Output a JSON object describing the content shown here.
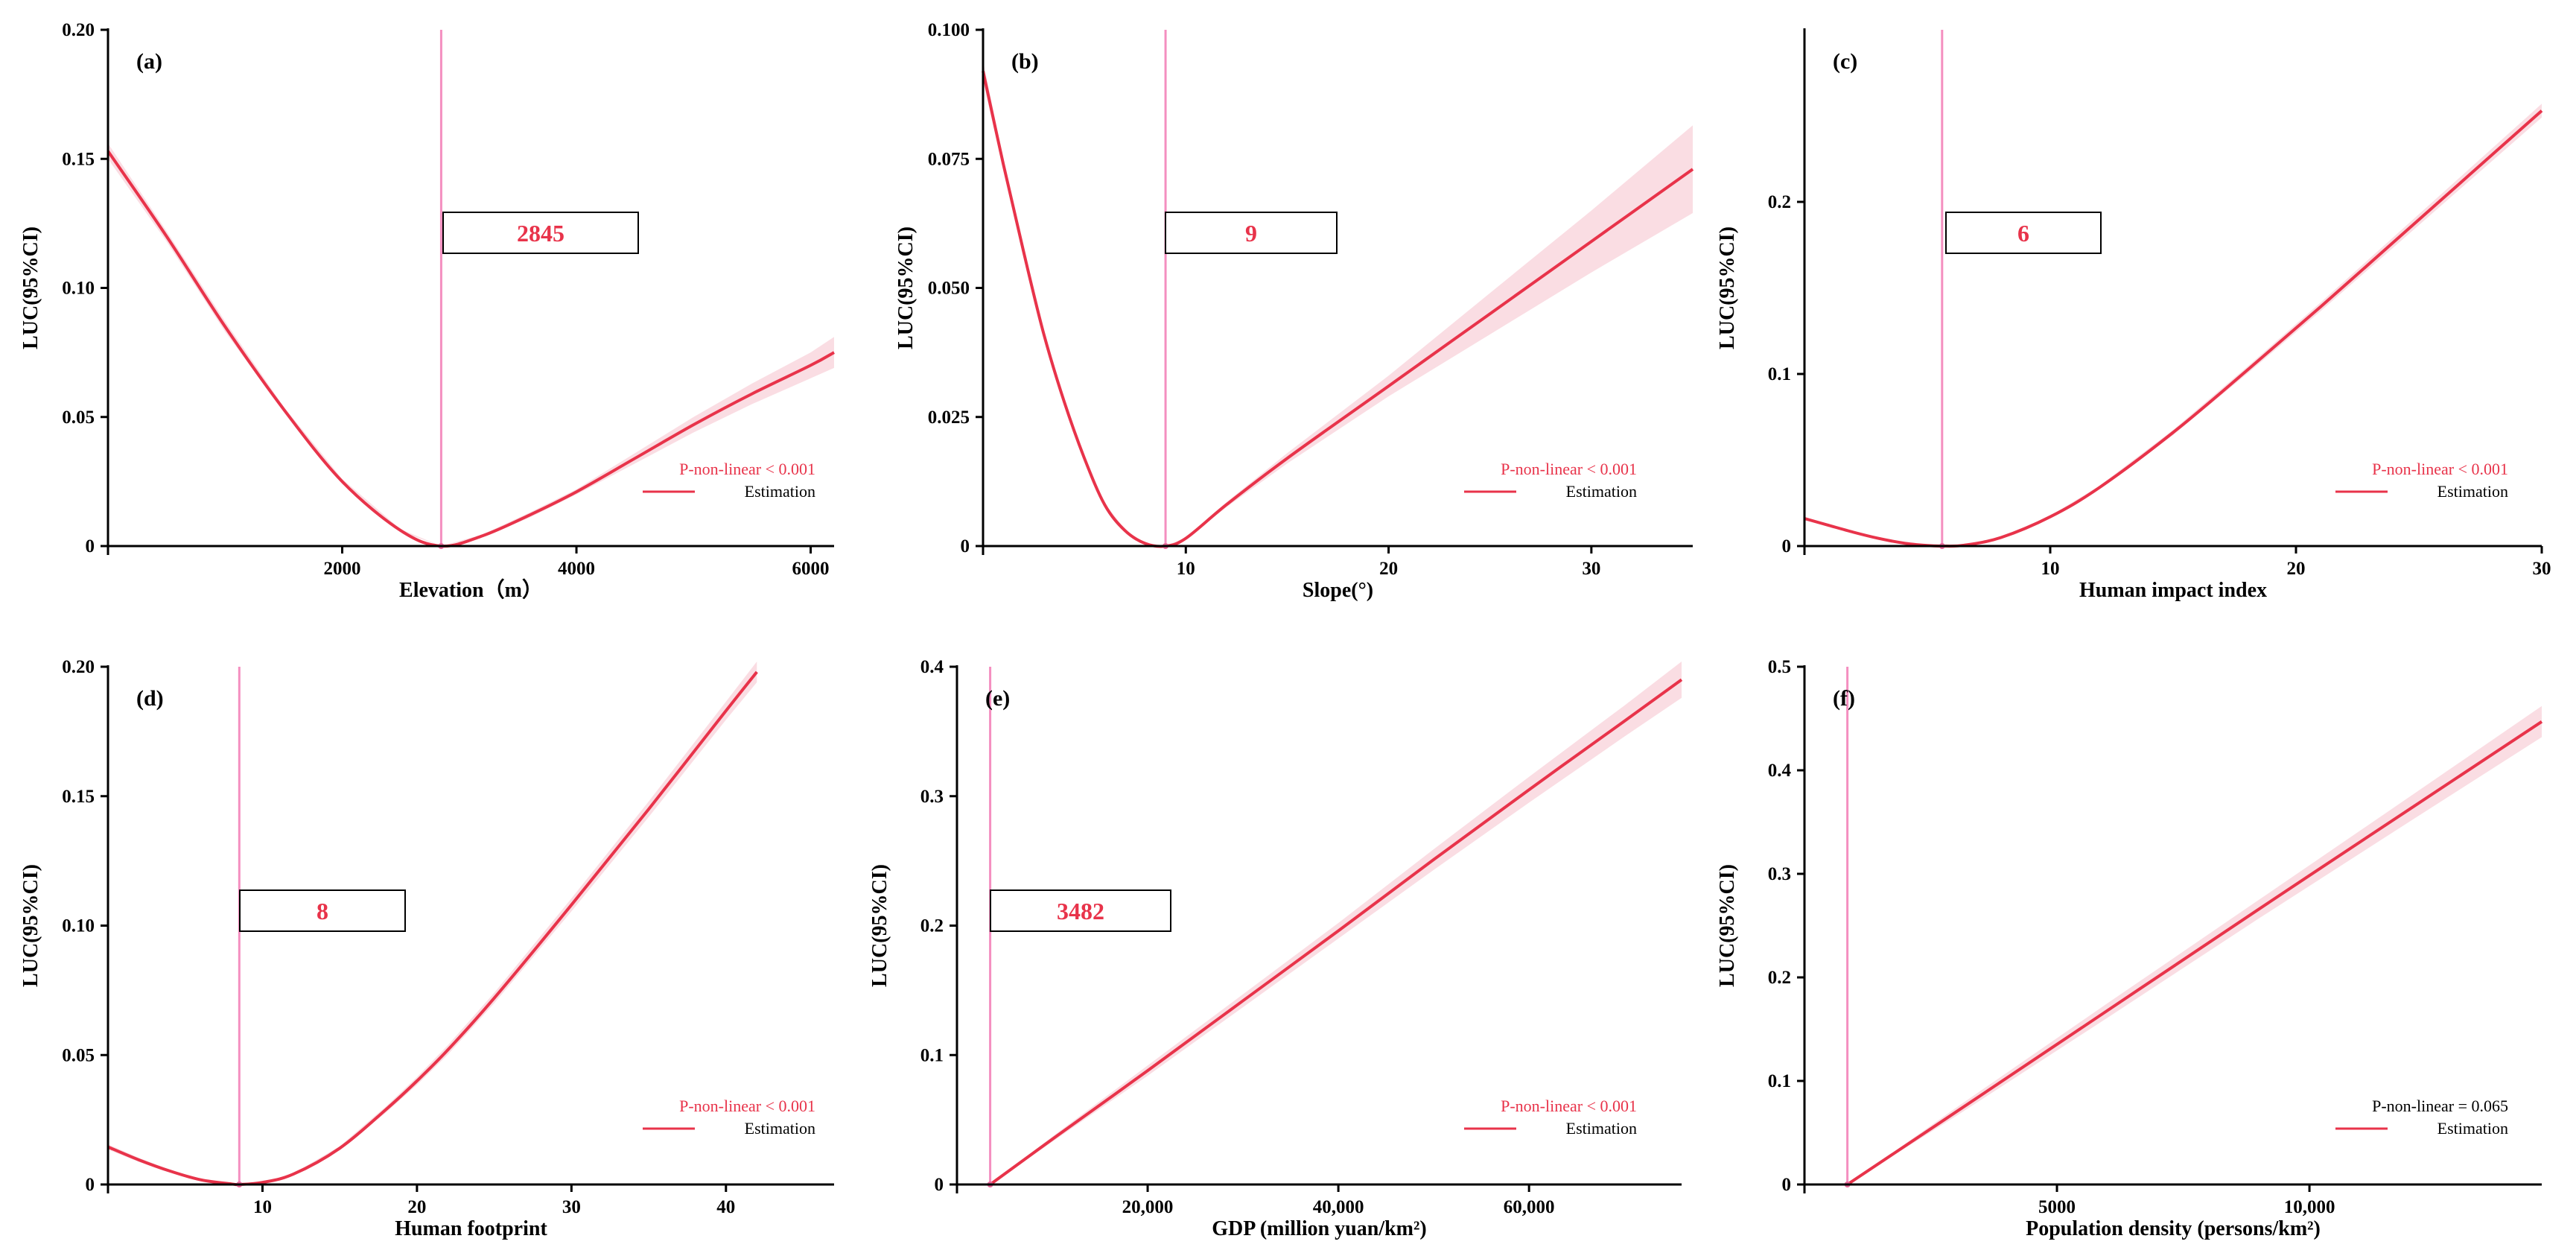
{
  "figure": {
    "curve_color": "#e8334a",
    "band_color": "#f7c6d0",
    "threshold_color": "#f48fc0",
    "pval_color_significant": "#e8334a",
    "pval_color_plain": "#000000"
  },
  "chart_data": [
    {
      "type": "line",
      "panel": "(a)",
      "xlabel": "Elevation（m）",
      "ylabel": "LUC(95%CI)",
      "xlim": [
        0,
        6200
      ],
      "ylim": [
        0,
        0.2
      ],
      "xticks": [
        2000,
        4000,
        6000
      ],
      "xtick_labels": [
        "2000",
        "4000",
        "6000"
      ],
      "yticks": [
        0,
        0.05,
        0.1,
        0.15,
        0.2
      ],
      "ytick_labels": [
        "0",
        "0.05",
        "0.10",
        "0.15",
        "0.20"
      ],
      "threshold": 2845,
      "threshold_label": "2845",
      "p_value_text": "P-non-linear < 0.001",
      "p_significant": true,
      "legend_label": "Estimation",
      "series": {
        "x": [
          0,
          500,
          1000,
          1500,
          2000,
          2500,
          2845,
          3200,
          3600,
          4000,
          4500,
          5000,
          5500,
          6000,
          6200
        ],
        "y": [
          0.153,
          0.12,
          0.085,
          0.053,
          0.025,
          0.006,
          0.0,
          0.004,
          0.012,
          0.021,
          0.034,
          0.047,
          0.059,
          0.07,
          0.075
        ],
        "ci_halfwidth": [
          0.003,
          0.002,
          0.002,
          0.001,
          0.001,
          0.0005,
          0.0,
          0.0005,
          0.001,
          0.001,
          0.002,
          0.003,
          0.004,
          0.005,
          0.006
        ]
      }
    },
    {
      "type": "line",
      "panel": "(b)",
      "xlabel": "Slope(°)",
      "ylabel": "LUC(95%CI)",
      "xlim": [
        0,
        35
      ],
      "ylim": [
        0,
        0.1
      ],
      "xticks": [
        10,
        20,
        30
      ],
      "xtick_labels": [
        "10",
        "20",
        "30"
      ],
      "yticks": [
        0,
        0.025,
        0.05,
        0.075,
        0.1
      ],
      "ytick_labels": [
        "0",
        "0.025",
        "0.050",
        "0.075",
        "0.100"
      ],
      "threshold": 9,
      "threshold_label": "9",
      "p_value_text": "P-non-linear < 0.001",
      "p_significant": true,
      "legend_label": "Estimation",
      "series": {
        "x": [
          0,
          1,
          2,
          3,
          4,
          5,
          6,
          7,
          8,
          9,
          10,
          12,
          15,
          20,
          25,
          30,
          35
        ],
        "y": [
          0.092,
          0.074,
          0.057,
          0.041,
          0.028,
          0.017,
          0.008,
          0.003,
          0.0005,
          0.0,
          0.0015,
          0.008,
          0.017,
          0.031,
          0.045,
          0.059,
          0.073
        ],
        "ci_halfwidth": [
          0.002,
          0.001,
          0.001,
          0.001,
          0.0005,
          0.0005,
          0.0003,
          0.0002,
          0.0,
          0.0,
          0.0002,
          0.0005,
          0.001,
          0.002,
          0.004,
          0.006,
          0.0085
        ]
      }
    },
    {
      "type": "line",
      "panel": "(c)",
      "xlabel": "Human impact index",
      "ylabel": "LUC(95%CI)",
      "xlim": [
        0,
        30
      ],
      "ylim": [
        0,
        0.3
      ],
      "xticks": [
        10,
        20,
        30
      ],
      "xtick_labels": [
        "10",
        "20",
        "30"
      ],
      "yticks": [
        0,
        0.1,
        0.2
      ],
      "ytick_labels": [
        "0",
        "0.1",
        "0.2"
      ],
      "threshold": 5.6,
      "threshold_label": "6",
      "p_value_text": "P-non-linear < 0.001",
      "p_significant": true,
      "legend_label": "Estimation",
      "series": {
        "x": [
          0,
          1,
          2,
          3,
          4,
          5,
          5.6,
          6.5,
          8,
          10,
          12,
          15,
          18,
          21,
          24,
          27,
          30
        ],
        "y": [
          0.016,
          0.012,
          0.008,
          0.0045,
          0.0018,
          0.0003,
          0.0,
          0.0005,
          0.005,
          0.017,
          0.034,
          0.066,
          0.102,
          0.139,
          0.177,
          0.215,
          0.253
        ],
        "ci_halfwidth": [
          0.001,
          0.0008,
          0.0006,
          0.0004,
          0.0002,
          0.0,
          0.0,
          0.0,
          0.0003,
          0.0006,
          0.001,
          0.0015,
          0.002,
          0.0025,
          0.003,
          0.0035,
          0.004
        ]
      }
    },
    {
      "type": "line",
      "panel": "(d)",
      "xlabel": "Human footprint",
      "ylabel": "LUC(95%CI)",
      "xlim": [
        0,
        47
      ],
      "ylim": [
        0,
        0.2
      ],
      "xticks": [
        10,
        20,
        30,
        40
      ],
      "xtick_labels": [
        "10",
        "20",
        "30",
        "40"
      ],
      "yticks": [
        0,
        0.05,
        0.1,
        0.15,
        0.2
      ],
      "ytick_labels": [
        "0",
        "0.05",
        "0.10",
        "0.15",
        "0.20"
      ],
      "threshold": 8.5,
      "threshold_label": "8",
      "p_value_text": "P-non-linear < 0.001",
      "p_significant": true,
      "legend_label": "Estimation",
      "series": {
        "x": [
          0,
          2,
          4,
          6,
          8,
          8.5,
          10,
          12,
          15,
          18,
          20,
          22,
          25,
          30,
          35,
          40,
          42
        ],
        "y": [
          0.0145,
          0.0095,
          0.0052,
          0.0018,
          0.0002,
          0.0,
          0.0008,
          0.004,
          0.014,
          0.029,
          0.04,
          0.052,
          0.072,
          0.108,
          0.145,
          0.183,
          0.198
        ],
        "ci_halfwidth": [
          0.001,
          0.0008,
          0.0005,
          0.0002,
          0.0,
          0.0,
          0.0,
          0.0003,
          0.0008,
          0.0012,
          0.0015,
          0.0018,
          0.002,
          0.0025,
          0.003,
          0.0035,
          0.004
        ]
      }
    },
    {
      "type": "line",
      "panel": "(e)",
      "xlabel": "GDP (million yuan/km²)",
      "ylabel": "LUC(95%CI)",
      "xlim": [
        0,
        76000
      ],
      "ylim": [
        0,
        0.4
      ],
      "xticks": [
        20000,
        40000,
        60000
      ],
      "xtick_labels": [
        "20,000",
        "40,000",
        "60,000"
      ],
      "yticks": [
        0,
        0.1,
        0.2,
        0.3,
        0.4
      ],
      "ytick_labels": [
        "0",
        "0.1",
        "0.2",
        "0.3",
        "0.4"
      ],
      "threshold": 3482,
      "threshold_label": "3482",
      "p_value_text": "P-non-linear < 0.001",
      "p_significant": true,
      "legend_label": "Estimation",
      "series": {
        "x": [
          3482,
          10000,
          20000,
          30000,
          40000,
          50000,
          60000,
          70000,
          76000
        ],
        "y": [
          0.0,
          0.035,
          0.088,
          0.142,
          0.196,
          0.251,
          0.305,
          0.358,
          0.39
        ],
        "ci_halfwidth": [
          0.0,
          0.002,
          0.004,
          0.005,
          0.006,
          0.008,
          0.01,
          0.012,
          0.014
        ]
      }
    },
    {
      "type": "line",
      "panel": "(f)",
      "xlabel": "Population density  (persons/km²)",
      "ylabel": "LUC(95%CI)",
      "xlim": [
        0,
        14600
      ],
      "ylim": [
        0,
        0.5
      ],
      "xticks": [
        5000,
        10000
      ],
      "xtick_labels": [
        "5000",
        "10,000"
      ],
      "yticks": [
        0,
        0.1,
        0.2,
        0.3,
        0.4,
        0.5
      ],
      "ytick_labels": [
        "0",
        "0.1",
        "0.2",
        "0.3",
        "0.4",
        "0.5"
      ],
      "threshold": 850,
      "threshold_label": "",
      "p_value_text": "P-non-linear = 0.065",
      "p_significant": false,
      "legend_label": "Estimation",
      "series": {
        "x": [
          850,
          3000,
          6000,
          9000,
          12000,
          14600
        ],
        "y": [
          0.0,
          0.07,
          0.168,
          0.266,
          0.363,
          0.447
        ],
        "ci_halfwidth": [
          0.0,
          0.004,
          0.007,
          0.009,
          0.012,
          0.015
        ]
      }
    }
  ]
}
